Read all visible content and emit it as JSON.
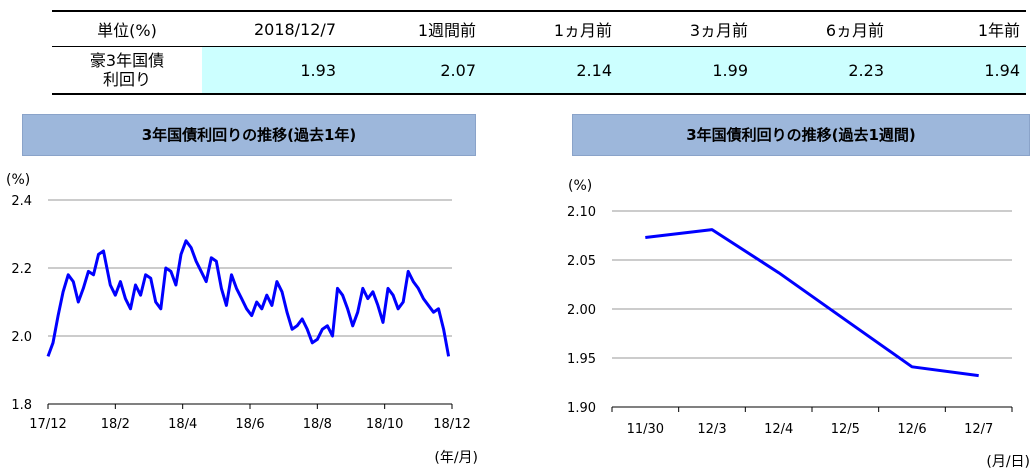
{
  "table": {
    "headers": [
      "単位(%)",
      "2018/12/7",
      "1週間前",
      "1ヵ月前",
      "3ヵ月前",
      "6ヵ月前",
      "1年前"
    ],
    "row_label": [
      "豪3年国債",
      "利回り"
    ],
    "values": [
      "1.93",
      "2.07",
      "2.14",
      "1.99",
      "2.23",
      "1.94"
    ]
  },
  "chart_data": [
    {
      "type": "line",
      "title": "3年国債利回りの推移(過去1年)",
      "ylabel": "(%)",
      "xlabel": "(年/月)",
      "x_ticks": [
        "17/12",
        "18/2",
        "18/4",
        "18/6",
        "18/8",
        "18/10",
        "18/12"
      ],
      "y_ticks": [
        "2.4",
        "2.2",
        "2.0",
        "1.8"
      ],
      "ylim": [
        1.8,
        2.4
      ],
      "xlim": [
        0,
        12
      ],
      "grid": true,
      "color": "#0000ff",
      "x": [
        0,
        0.15,
        0.3,
        0.45,
        0.6,
        0.75,
        0.9,
        1.05,
        1.2,
        1.35,
        1.5,
        1.65,
        1.75,
        1.85,
        2.0,
        2.15,
        2.3,
        2.45,
        2.6,
        2.75,
        2.9,
        3.05,
        3.2,
        3.35,
        3.5,
        3.65,
        3.8,
        3.95,
        4.1,
        4.25,
        4.4,
        4.55,
        4.7,
        4.85,
        5.0,
        5.15,
        5.3,
        5.45,
        5.6,
        5.75,
        5.9,
        6.05,
        6.2,
        6.35,
        6.5,
        6.65,
        6.8,
        6.95,
        7.1,
        7.25,
        7.4,
        7.55,
        7.7,
        7.85,
        8.0,
        8.15,
        8.3,
        8.45,
        8.6,
        8.75,
        8.9,
        9.05,
        9.2,
        9.35,
        9.5,
        9.65,
        9.8,
        9.95,
        10.1,
        10.25,
        10.4,
        10.55,
        10.7,
        10.85,
        11.0,
        11.15,
        11.3,
        11.45,
        11.6,
        11.75,
        11.9
      ],
      "y": [
        1.94,
        1.98,
        2.06,
        2.13,
        2.18,
        2.16,
        2.1,
        2.14,
        2.19,
        2.18,
        2.24,
        2.25,
        2.2,
        2.15,
        2.12,
        2.16,
        2.11,
        2.08,
        2.15,
        2.12,
        2.18,
        2.17,
        2.1,
        2.08,
        2.2,
        2.19,
        2.15,
        2.24,
        2.28,
        2.26,
        2.22,
        2.19,
        2.16,
        2.23,
        2.22,
        2.14,
        2.09,
        2.18,
        2.14,
        2.11,
        2.08,
        2.06,
        2.1,
        2.08,
        2.12,
        2.09,
        2.16,
        2.13,
        2.07,
        2.02,
        2.03,
        2.05,
        2.02,
        1.98,
        1.99,
        2.02,
        2.03,
        2.0,
        2.14,
        2.12,
        2.08,
        2.03,
        2.07,
        2.14,
        2.11,
        2.13,
        2.09,
        2.04,
        2.14,
        2.12,
        2.08,
        2.1,
        2.19,
        2.16,
        2.14,
        2.11,
        2.09,
        2.07,
        2.08,
        2.02,
        1.94
      ]
    },
    {
      "type": "line",
      "title": "3年国債利回りの推移(過去1週間)",
      "ylabel": "(%)",
      "xlabel": "(月/日)",
      "categories": [
        "11/30",
        "12/3",
        "12/4",
        "12/5",
        "12/6",
        "12/7"
      ],
      "values": [
        2.073,
        2.081,
        2.037,
        1.989,
        1.941,
        1.932
      ],
      "y_ticks": [
        "2.10",
        "2.05",
        "2.00",
        "1.95",
        "1.90"
      ],
      "ylim": [
        1.9,
        2.1
      ],
      "grid": true,
      "color": "#0000ff"
    }
  ]
}
